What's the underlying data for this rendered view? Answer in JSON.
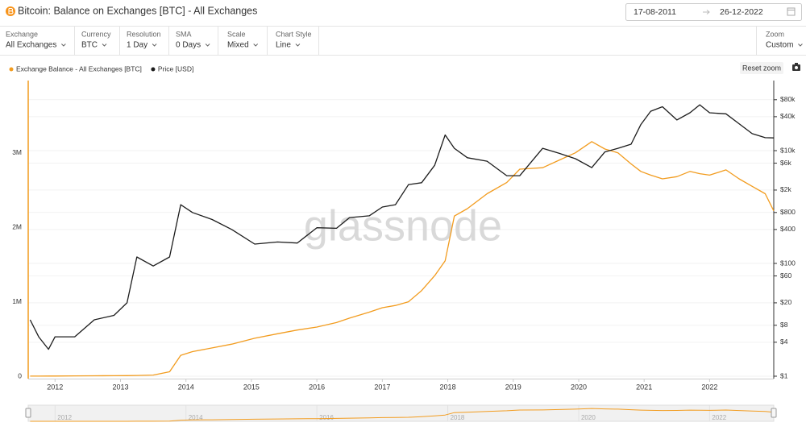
{
  "header": {
    "title": "Bitcoin: Balance on Exchanges [BTC] - All Exchanges",
    "date_from": "17-08-2011",
    "date_to": "26-12-2022"
  },
  "controls": [
    {
      "label": "Exchange",
      "value": "All Exchanges"
    },
    {
      "label": "Currency",
      "value": "BTC"
    },
    {
      "label": "Resolution",
      "value": "1 Day"
    },
    {
      "label": "SMA",
      "value": "0 Days"
    },
    {
      "label": "Scale",
      "value": "Mixed"
    },
    {
      "label": "Chart Style",
      "value": "Line"
    }
  ],
  "zoom": {
    "label": "Zoom",
    "value": "Custom"
  },
  "toolbar": {
    "reset_zoom": "Reset zoom"
  },
  "chart_data": {
    "type": "line",
    "watermark": "glassnode",
    "x": [
      2011.62,
      2011.75,
      2011.9,
      2012.0,
      2012.3,
      2012.6,
      2012.9,
      2013.1,
      2013.25,
      2013.5,
      2013.75,
      2013.92,
      2014.1,
      2014.4,
      2014.7,
      2015.05,
      2015.4,
      2015.7,
      2016.0,
      2016.3,
      2016.5,
      2016.8,
      2017.0,
      2017.2,
      2017.4,
      2017.6,
      2017.8,
      2017.96,
      2018.1,
      2018.3,
      2018.6,
      2018.9,
      2019.1,
      2019.45,
      2019.7,
      2019.95,
      2020.2,
      2020.4,
      2020.6,
      2020.8,
      2020.95,
      2021.1,
      2021.28,
      2021.5,
      2021.7,
      2021.85,
      2022.0,
      2022.25,
      2022.45,
      2022.65,
      2022.85,
      2022.98
    ],
    "series": [
      {
        "name": "Exchange Balance - All Exchanges [BTC]",
        "color": "#f29c1f",
        "values": [
          1000,
          1500,
          2000,
          2500,
          4000,
          5000,
          6000,
          8000,
          10000,
          15000,
          60000,
          280000,
          330000,
          380000,
          430000,
          510000,
          570000,
          620000,
          660000,
          720000,
          780000,
          860000,
          920000,
          950000,
          1000000,
          1150000,
          1350000,
          1550000,
          2150000,
          2250000,
          2450000,
          2600000,
          2780000,
          2800000,
          2900000,
          3000000,
          3150000,
          3050000,
          3000000,
          2850000,
          2750000,
          2700000,
          2650000,
          2680000,
          2750000,
          2720000,
          2700000,
          2770000,
          2650000,
          2550000,
          2450000,
          2220000
        ]
      },
      {
        "name": "Price [USD]",
        "color": "#1c1c1c",
        "axis": "y2",
        "values": [
          10,
          5,
          3,
          5,
          5,
          10,
          12,
          20,
          130,
          90,
          130,
          1100,
          800,
          600,
          400,
          220,
          240,
          230,
          430,
          420,
          650,
          700,
          1000,
          1100,
          2500,
          2700,
          5500,
          19000,
          11000,
          7500,
          6500,
          3600,
          3600,
          11000,
          9000,
          7200,
          5000,
          9500,
          11000,
          13000,
          29000,
          50000,
          60000,
          35000,
          47000,
          65000,
          47000,
          45000,
          30000,
          20000,
          17000,
          16800
        ]
      }
    ],
    "xlim": [
      2011.59,
      2022.98
    ],
    "xticks": [
      2012,
      2013,
      2014,
      2015,
      2016,
      2017,
      2018,
      2019,
      2020,
      2021,
      2022
    ],
    "ylim": [
      0,
      3970000
    ],
    "yticks": [
      0,
      {
        "value": 1000000,
        "label": "1M"
      },
      {
        "value": 2000000,
        "label": "2M"
      },
      {
        "value": 3000000,
        "label": "3M"
      }
    ],
    "y2lim": [
      1,
      175000
    ],
    "y2log": true,
    "y2ticks": [
      {
        "value": 1,
        "label": "$1"
      },
      {
        "value": 4,
        "label": "$4"
      },
      {
        "value": 8,
        "label": "$8"
      },
      {
        "value": 20,
        "label": "$20"
      },
      {
        "value": 60,
        "label": "$60"
      },
      {
        "value": 100,
        "label": "$100"
      },
      {
        "value": 400,
        "label": "$400"
      },
      {
        "value": 800,
        "label": "$800"
      },
      {
        "value": 2000,
        "label": "$2k"
      },
      {
        "value": 6000,
        "label": "$6k"
      },
      {
        "value": 10000,
        "label": "$10k"
      },
      {
        "value": 40000,
        "label": "$40k"
      },
      {
        "value": 80000,
        "label": "$80k"
      }
    ],
    "grid": true,
    "navigator_xticks": [
      2012,
      2014,
      2016,
      2018,
      2020,
      2022
    ]
  }
}
